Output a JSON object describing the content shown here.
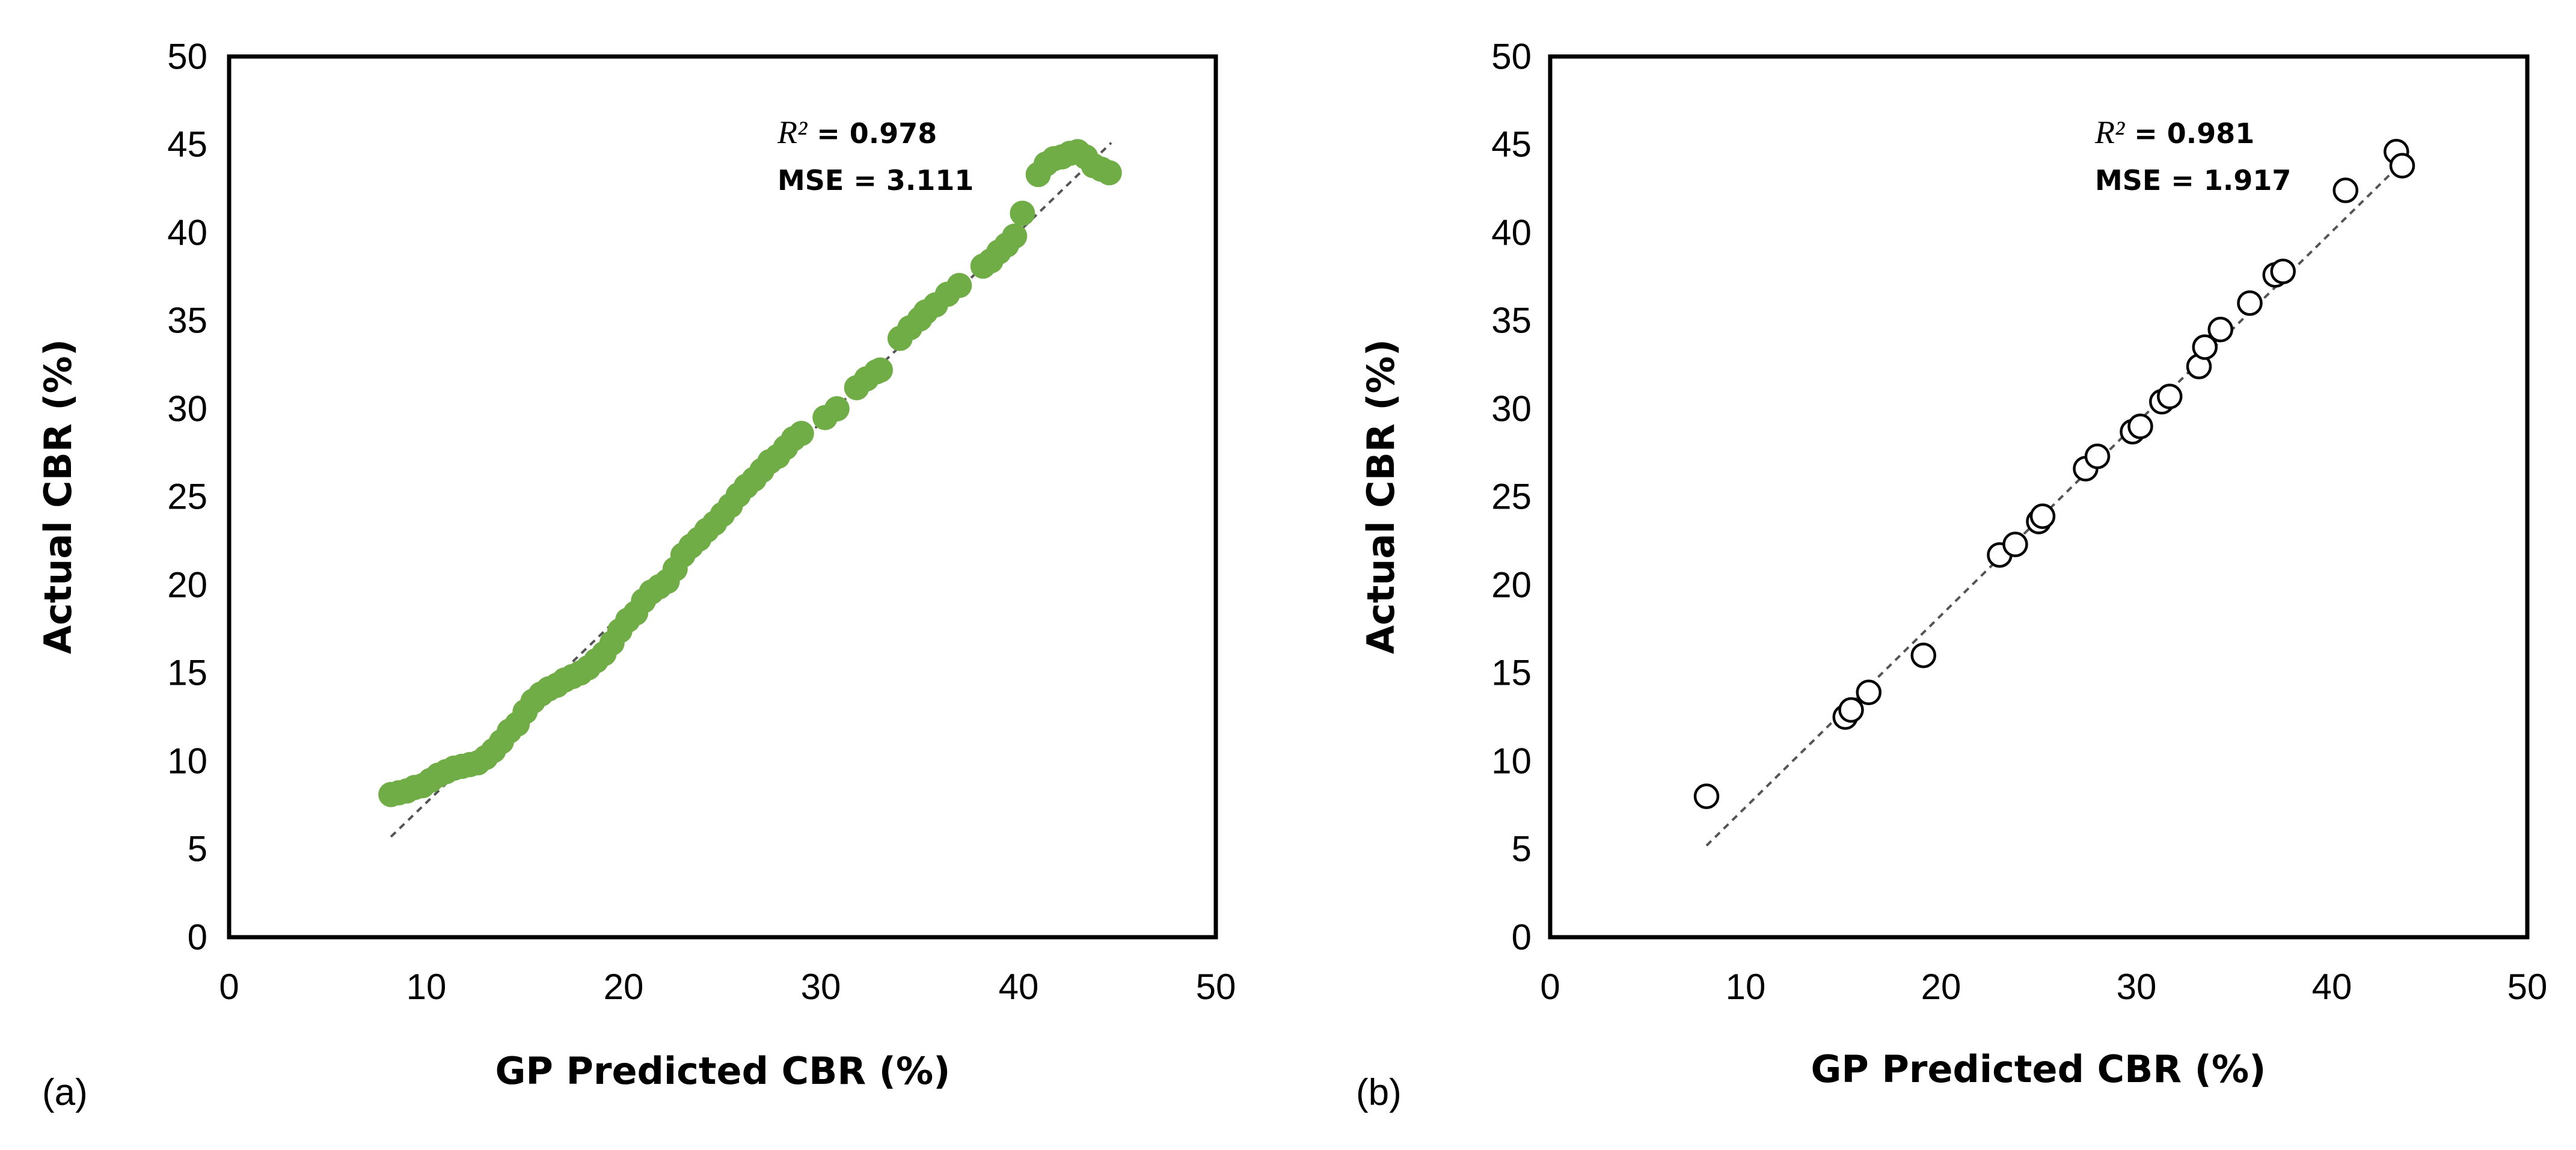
{
  "chart_data": [
    {
      "type": "scatter",
      "panel_label": "(a)",
      "xlabel": "GP Predicted CBR (%)",
      "ylabel": "Actual CBR (%)",
      "xlim": [
        0,
        50
      ],
      "ylim": [
        0,
        50
      ],
      "xticks": [
        "0",
        "10",
        "20",
        "30",
        "40",
        "50"
      ],
      "yticks": [
        "0",
        "5",
        "10",
        "15",
        "20",
        "25",
        "30",
        "35",
        "40",
        "45",
        "50"
      ],
      "marker": "filled-circle",
      "marker_color": "#70ad47",
      "r2_symbol": "R²",
      "r2_value": "= 0.978",
      "mse_text": "MSE = 3.111",
      "fit_line": {
        "x": [
          8.2,
          44.7
        ],
        "y": [
          5.7,
          45.1
        ]
      },
      "x": [
        8.2,
        8.6,
        9.0,
        9.4,
        9.8,
        10.2,
        10.6,
        11.0,
        11.4,
        11.8,
        12.2,
        12.6,
        13.0,
        13.4,
        13.8,
        14.2,
        14.6,
        15.0,
        15.4,
        15.8,
        16.2,
        16.6,
        17.0,
        17.4,
        17.8,
        18.2,
        18.6,
        19.0,
        19.4,
        19.8,
        20.2,
        20.6,
        21.0,
        21.4,
        21.8,
        22.2,
        22.6,
        23.0,
        23.4,
        23.8,
        24.2,
        24.6,
        25.0,
        25.4,
        25.8,
        26.2,
        26.6,
        27.0,
        27.4,
        27.8,
        28.2,
        28.6,
        29.0,
        30.2,
        30.8,
        31.8,
        32.3,
        32.8,
        33.0,
        34.0,
        34.5,
        35.0,
        35.3,
        35.8,
        36.4,
        37.0,
        38.2,
        38.6,
        39.0,
        39.4,
        39.8,
        40.2,
        41.0,
        41.4,
        41.8,
        42.2,
        42.6,
        43.0,
        43.4,
        43.8,
        44.2,
        44.6
      ],
      "y": [
        8.1,
        8.2,
        8.3,
        8.5,
        8.6,
        8.9,
        9.2,
        9.4,
        9.6,
        9.7,
        9.8,
        9.9,
        10.2,
        10.6,
        11.1,
        11.7,
        12.1,
        12.8,
        13.4,
        13.8,
        14.1,
        14.3,
        14.6,
        14.8,
        15.0,
        15.3,
        15.7,
        16.1,
        16.7,
        17.4,
        18.0,
        18.4,
        19.1,
        19.6,
        19.9,
        20.2,
        20.9,
        21.7,
        22.2,
        22.6,
        23.1,
        23.5,
        24.0,
        24.5,
        25.1,
        25.6,
        26.0,
        26.5,
        27.0,
        27.3,
        27.8,
        28.3,
        28.6,
        29.5,
        30.0,
        31.2,
        31.7,
        32.1,
        32.2,
        34.0,
        34.6,
        35.1,
        35.5,
        35.9,
        36.5,
        37.0,
        38.1,
        38.4,
        38.9,
        39.3,
        39.8,
        41.1,
        43.3,
        43.9,
        44.2,
        44.3,
        44.5,
        44.6,
        44.3,
        43.8,
        43.6,
        43.4
      ]
    },
    {
      "type": "scatter",
      "panel_label": "(b)",
      "xlabel": "GP Predicted CBR (%)",
      "ylabel": "Actual CBR (%)",
      "xlim": [
        0,
        50
      ],
      "ylim": [
        0,
        50
      ],
      "xticks": [
        "0",
        "10",
        "20",
        "30",
        "40",
        "50"
      ],
      "yticks": [
        "0",
        "5",
        "10",
        "15",
        "20",
        "25",
        "30",
        "35",
        "40",
        "45",
        "50"
      ],
      "marker": "open-circle",
      "marker_color": "#000000",
      "r2_symbol": "R²",
      "r2_value": "= 0.981",
      "mse_text": "MSE = 1.917",
      "fit_line": {
        "x": [
          8.0,
          43.8
        ],
        "y": [
          5.2,
          44.2
        ]
      },
      "x": [
        8.0,
        15.1,
        15.4,
        16.3,
        19.1,
        23.0,
        23.8,
        25.0,
        25.2,
        27.4,
        28.0,
        29.8,
        30.2,
        31.3,
        31.7,
        33.2,
        33.5,
        34.3,
        35.8,
        37.1,
        37.5,
        40.7,
        43.3,
        43.6
      ],
      "y": [
        8.0,
        12.5,
        12.9,
        13.9,
        16.0,
        21.7,
        22.3,
        23.6,
        23.9,
        26.6,
        27.3,
        28.7,
        29.0,
        30.4,
        30.7,
        32.4,
        33.5,
        34.5,
        36.0,
        37.6,
        37.8,
        42.4,
        44.6,
        43.8
      ]
    }
  ]
}
